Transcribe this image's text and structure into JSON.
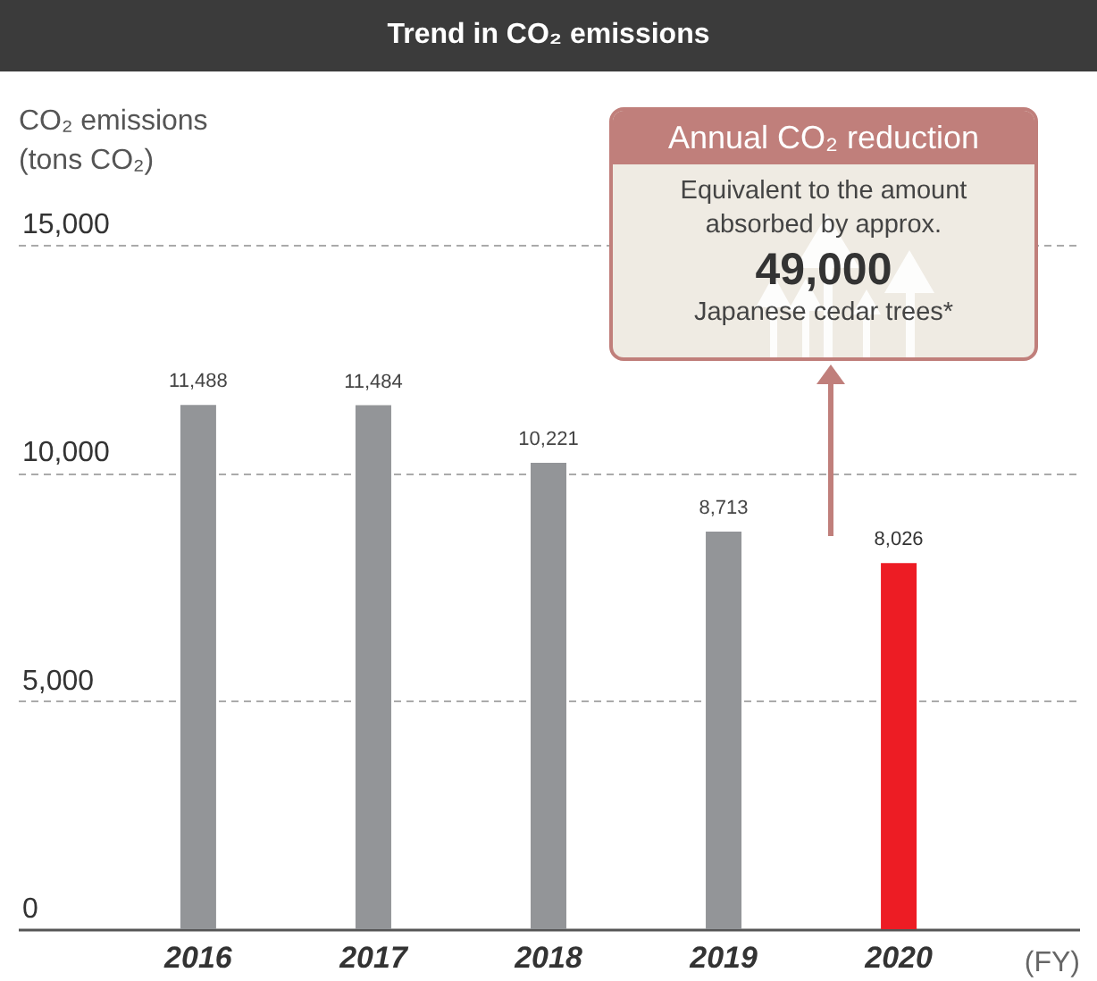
{
  "chart_data": {
    "type": "bar",
    "title": "Trend in CO₂ emissions",
    "ylabel": "CO₂ emissions\n(tons CO₂)",
    "xlabel": "(FY)",
    "categories": [
      "2016",
      "2017",
      "2018",
      "2019",
      "2020"
    ],
    "values": [
      11488,
      11484,
      10221,
      8713,
      8026
    ],
    "colors": [
      "#939598",
      "#939598",
      "#939598",
      "#939598",
      "#ed1c24"
    ],
    "value_labels": [
      "11,488",
      "11,484",
      "10,221",
      "8,713",
      "8,026"
    ],
    "ylim": [
      0,
      15000
    ],
    "yticks": [
      0,
      {
        "value": 5000,
        "label": "5,000"
      },
      {
        "value": 10000,
        "label": "10,000"
      },
      {
        "value": 15000,
        "label": "15,000"
      }
    ],
    "grid": "y",
    "annotations": [
      "Annual CO₂ reduction",
      "Equivalent to the amount absorbed by approx.",
      "49,000",
      "Japanese cedar trees*"
    ]
  }
}
